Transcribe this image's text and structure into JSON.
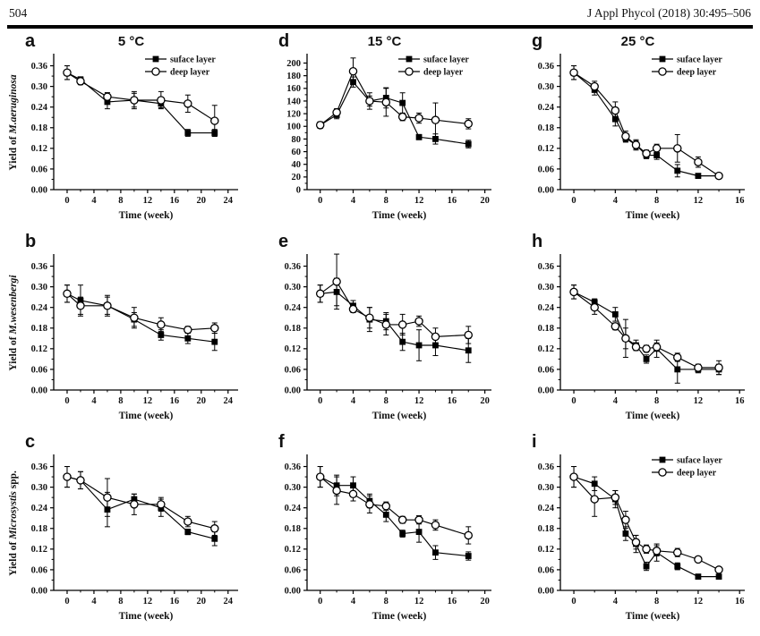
{
  "page": {
    "page_number": "504",
    "journal_ref": "J Appl Phycol (2018) 30:495–506"
  },
  "chart_data": [
    {
      "id": "a",
      "panel_label": "a",
      "title": "5 °C",
      "type": "line",
      "show_legend": true,
      "ylabel_prefix": "Yield of ",
      "ylabel_species": "M.aeruginosa",
      "ylabel_suffix": "",
      "xlabel": "Time (week)",
      "xlim": [
        -2,
        25.5
      ],
      "xticks": [
        0,
        4,
        8,
        12,
        16,
        20,
        24
      ],
      "ylim": [
        0,
        0.39
      ],
      "yticks": [
        0,
        0.06,
        0.12,
        0.18,
        0.24,
        0.3,
        0.36
      ],
      "ytick_labels": [
        "0.00",
        "0.06",
        "0.12",
        "0.18",
        "0.24",
        "0.30",
        "0.36"
      ],
      "x": [
        0,
        2,
        6,
        10,
        14,
        18,
        22
      ],
      "series": [
        {
          "name": "suface layer",
          "marker": "filled-square",
          "values": [
            0.34,
            0.32,
            0.255,
            0.26,
            0.25,
            0.165,
            0.165
          ],
          "errors": [
            0.02,
            0.008,
            0.02,
            0.025,
            0.012,
            0.01,
            0.01
          ]
        },
        {
          "name": "deep layer",
          "marker": "open-circle",
          "values": [
            0.34,
            0.315,
            0.27,
            0.26,
            0.26,
            0.25,
            0.2
          ],
          "errors": [
            0.02,
            0.01,
            0.012,
            0.02,
            0.025,
            0.025,
            0.045
          ]
        }
      ]
    },
    {
      "id": "d",
      "panel_label": "d",
      "title": "15 °C",
      "type": "line",
      "show_legend": true,
      "ylabel_prefix": "",
      "ylabel_species": "",
      "ylabel_suffix": "",
      "xlabel": "Time (week)",
      "xlim": [
        -1.6,
        20.8
      ],
      "xticks": [
        0,
        4,
        8,
        12,
        16,
        20
      ],
      "ylim": [
        0,
        212
      ],
      "yticks": [
        0,
        20,
        40,
        60,
        80,
        100,
        120,
        140,
        160,
        180,
        200
      ],
      "ytick_labels": [
        "0",
        "20",
        "40",
        "60",
        "80",
        "100",
        "120",
        "140",
        "160",
        "180",
        "200"
      ],
      "x": [
        0,
        2,
        4,
        6,
        8,
        10,
        12,
        14,
        18
      ],
      "series": [
        {
          "name": "suface layer",
          "marker": "filled-square",
          "values": [
            102,
            118,
            170,
            140,
            145,
            137,
            83,
            80,
            72
          ],
          "errors": [
            5,
            6,
            8,
            8,
            16,
            16,
            4,
            8,
            6
          ]
        },
        {
          "name": "deep layer",
          "marker": "open-circle",
          "values": [
            102,
            122,
            187,
            140,
            138,
            115,
            113,
            110,
            104
          ],
          "errors": [
            5,
            6,
            21,
            13,
            22,
            6,
            8,
            27,
            8
          ]
        }
      ]
    },
    {
      "id": "g",
      "panel_label": "g",
      "title": "25 °C",
      "type": "line",
      "show_legend": true,
      "ylabel_prefix": "",
      "ylabel_species": "",
      "ylabel_suffix": "",
      "xlabel": "Time (week)",
      "xlim": [
        -1.3,
        16.5
      ],
      "xticks": [
        0,
        4,
        8,
        12,
        16
      ],
      "ylim": [
        0,
        0.39
      ],
      "yticks": [
        0,
        0.06,
        0.12,
        0.18,
        0.24,
        0.3,
        0.36
      ],
      "ytick_labels": [
        "0.00",
        "0.06",
        "0.12",
        "0.18",
        "0.24",
        "0.30",
        "0.36"
      ],
      "x": [
        0,
        2,
        4,
        5,
        6,
        7,
        8,
        10,
        12,
        14
      ],
      "series": [
        {
          "name": "suface layer",
          "marker": "filled-square",
          "values": [
            0.34,
            0.29,
            0.205,
            0.15,
            0.13,
            0.1,
            0.1,
            0.055,
            0.04,
            0.04
          ],
          "errors": [
            0.02,
            0.015,
            0.02,
            0.012,
            0.012,
            0.01,
            0.012,
            0.018,
            0.005,
            0.005
          ]
        },
        {
          "name": "deep layer",
          "marker": "open-circle",
          "values": [
            0.34,
            0.3,
            0.23,
            0.155,
            0.13,
            0.105,
            0.12,
            0.12,
            0.08,
            0.04
          ],
          "errors": [
            0.02,
            0.015,
            0.025,
            0.015,
            0.015,
            0.01,
            0.012,
            0.04,
            0.015,
            0.005
          ]
        }
      ]
    },
    {
      "id": "b",
      "panel_label": "b",
      "title": "",
      "type": "line",
      "show_legend": false,
      "ylabel_prefix": "Yield of ",
      "ylabel_species": "M.wesenbergi",
      "ylabel_suffix": "",
      "xlabel": "Time (week)",
      "xlim": [
        -2,
        25.5
      ],
      "xticks": [
        0,
        4,
        8,
        12,
        16,
        20,
        24
      ],
      "ylim": [
        0,
        0.39
      ],
      "yticks": [
        0,
        0.06,
        0.12,
        0.18,
        0.24,
        0.3,
        0.36
      ],
      "ytick_labels": [
        "0.00",
        "0.06",
        "0.12",
        "0.18",
        "0.24",
        "0.30",
        "0.36"
      ],
      "x": [
        0,
        2,
        6,
        10,
        14,
        18,
        22
      ],
      "series": [
        {
          "name": "suface layer",
          "marker": "filled-square",
          "values": [
            0.28,
            0.26,
            0.245,
            0.205,
            0.16,
            0.15,
            0.14
          ],
          "errors": [
            0.025,
            0.045,
            0.025,
            0.02,
            0.015,
            0.015,
            0.025
          ]
        },
        {
          "name": "deep layer",
          "marker": "open-circle",
          "values": [
            0.28,
            0.245,
            0.245,
            0.21,
            0.19,
            0.175,
            0.18
          ],
          "errors": [
            0.025,
            0.025,
            0.03,
            0.03,
            0.02,
            0.01,
            0.015
          ]
        }
      ]
    },
    {
      "id": "e",
      "panel_label": "e",
      "title": "",
      "type": "line",
      "show_legend": false,
      "ylabel_prefix": "",
      "ylabel_species": "",
      "ylabel_suffix": "",
      "xlabel": "Time (week)",
      "xlim": [
        -1.6,
        20.8
      ],
      "xticks": [
        0,
        4,
        8,
        12,
        16,
        20
      ],
      "ylim": [
        0,
        0.39
      ],
      "yticks": [
        0,
        0.06,
        0.12,
        0.18,
        0.24,
        0.3,
        0.36
      ],
      "ytick_labels": [
        "0.00",
        "0.06",
        "0.12",
        "0.18",
        "0.24",
        "0.30",
        "0.36"
      ],
      "x": [
        0,
        2,
        4,
        6,
        8,
        10,
        12,
        14,
        18
      ],
      "series": [
        {
          "name": "suface layer",
          "marker": "filled-square",
          "values": [
            0.28,
            0.285,
            0.245,
            0.205,
            0.2,
            0.14,
            0.13,
            0.13,
            0.115
          ],
          "errors": [
            0.025,
            0.04,
            0.015,
            0.035,
            0.025,
            0.025,
            0.045,
            0.03,
            0.035
          ]
        },
        {
          "name": "deep layer",
          "marker": "open-circle",
          "values": [
            0.28,
            0.315,
            0.235,
            0.21,
            0.19,
            0.19,
            0.2,
            0.155,
            0.16
          ],
          "errors": [
            0.025,
            0.08,
            0.01,
            0.03,
            0.03,
            0.03,
            0.015,
            0.025,
            0.025
          ]
        }
      ]
    },
    {
      "id": "h",
      "panel_label": "h",
      "title": "",
      "type": "line",
      "show_legend": false,
      "ylabel_prefix": "",
      "ylabel_species": "",
      "ylabel_suffix": "",
      "xlabel": "Time (week)",
      "xlim": [
        -1.3,
        16.5
      ],
      "xticks": [
        0,
        4,
        8,
        12,
        16
      ],
      "ylim": [
        0,
        0.39
      ],
      "yticks": [
        0,
        0.06,
        0.12,
        0.18,
        0.24,
        0.3,
        0.36
      ],
      "ytick_labels": [
        "0.00",
        "0.06",
        "0.12",
        "0.18",
        "0.24",
        "0.30",
        "0.36"
      ],
      "x": [
        0,
        2,
        4,
        5,
        6,
        7,
        8,
        10,
        12,
        14
      ],
      "series": [
        {
          "name": "suface layer",
          "marker": "filled-square",
          "values": [
            0.285,
            0.255,
            0.22,
            0.15,
            0.13,
            0.09,
            0.12,
            0.06,
            0.06,
            0.06
          ],
          "errors": [
            0.02,
            0.01,
            0.02,
            0.03,
            0.015,
            0.012,
            0.025,
            0.04,
            0.01,
            0.015
          ]
        },
        {
          "name": "deep layer",
          "marker": "open-circle",
          "values": [
            0.285,
            0.24,
            0.185,
            0.15,
            0.125,
            0.12,
            0.125,
            0.095,
            0.065,
            0.065
          ],
          "errors": [
            0.02,
            0.02,
            0.01,
            0.055,
            0.01,
            0.01,
            0.012,
            0.012,
            0.01,
            0.02
          ]
        }
      ]
    },
    {
      "id": "c",
      "panel_label": "c",
      "title": "",
      "type": "line",
      "show_legend": false,
      "ylabel_prefix": "Yield of ",
      "ylabel_species": "Microsystis",
      "ylabel_suffix": " spp.",
      "xlabel": "Time (week)",
      "xlim": [
        -2,
        25.5
      ],
      "xticks": [
        0,
        4,
        8,
        12,
        16,
        20,
        24
      ],
      "ylim": [
        0,
        0.39
      ],
      "yticks": [
        0,
        0.06,
        0.12,
        0.18,
        0.24,
        0.3,
        0.36
      ],
      "ytick_labels": [
        "0.00",
        "0.06",
        "0.12",
        "0.18",
        "0.24",
        "0.30",
        "0.36"
      ],
      "x": [
        0,
        2,
        6,
        10,
        14,
        18,
        22
      ],
      "series": [
        {
          "name": "suface layer",
          "marker": "filled-square",
          "values": [
            0.33,
            0.32,
            0.235,
            0.265,
            0.24,
            0.17,
            0.15
          ],
          "errors": [
            0.03,
            0.025,
            0.05,
            0.015,
            0.025,
            0.008,
            0.02
          ]
        },
        {
          "name": "deep layer",
          "marker": "open-circle",
          "values": [
            0.33,
            0.32,
            0.27,
            0.25,
            0.25,
            0.2,
            0.18
          ],
          "errors": [
            0.03,
            0.025,
            0.055,
            0.03,
            0.02,
            0.015,
            0.02
          ]
        }
      ]
    },
    {
      "id": "f",
      "panel_label": "f",
      "title": "",
      "type": "line",
      "show_legend": false,
      "ylabel_prefix": "",
      "ylabel_species": "",
      "ylabel_suffix": "",
      "xlabel": "Time (week)",
      "xlim": [
        -1.6,
        20.8
      ],
      "xticks": [
        0,
        4,
        8,
        12,
        16,
        20
      ],
      "ylim": [
        0,
        0.39
      ],
      "yticks": [
        0,
        0.06,
        0.12,
        0.18,
        0.24,
        0.3,
        0.36
      ],
      "ytick_labels": [
        "0.00",
        "0.06",
        "0.12",
        "0.18",
        "0.24",
        "0.30",
        "0.36"
      ],
      "x": [
        0,
        2,
        4,
        6,
        8,
        10,
        12,
        14,
        18
      ],
      "series": [
        {
          "name": "suface layer",
          "marker": "filled-square",
          "values": [
            0.33,
            0.305,
            0.305,
            0.26,
            0.22,
            0.165,
            0.17,
            0.11,
            0.1
          ],
          "errors": [
            0.03,
            0.03,
            0.025,
            0.02,
            0.02,
            0.01,
            0.03,
            0.02,
            0.012
          ]
        },
        {
          "name": "deep layer",
          "marker": "open-circle",
          "values": [
            0.33,
            0.29,
            0.28,
            0.25,
            0.245,
            0.205,
            0.205,
            0.19,
            0.16
          ],
          "errors": [
            0.03,
            0.04,
            0.02,
            0.025,
            0.012,
            0.01,
            0.012,
            0.015,
            0.025
          ]
        }
      ]
    },
    {
      "id": "i",
      "panel_label": "i",
      "title": "",
      "type": "line",
      "show_legend": true,
      "ylabel_prefix": "",
      "ylabel_species": "",
      "ylabel_suffix": "",
      "xlabel": "Time (week)",
      "xlim": [
        -1.3,
        16.5
      ],
      "xticks": [
        0,
        4,
        8,
        12,
        16
      ],
      "ylim": [
        0,
        0.39
      ],
      "yticks": [
        0,
        0.06,
        0.12,
        0.18,
        0.24,
        0.3,
        0.36
      ],
      "ytick_labels": [
        "0.00",
        "0.06",
        "0.12",
        "0.18",
        "0.24",
        "0.30",
        "0.36"
      ],
      "x": [
        0,
        2,
        4,
        5,
        6,
        7,
        8,
        10,
        12,
        14
      ],
      "series": [
        {
          "name": "suface layer",
          "marker": "filled-square",
          "values": [
            0.33,
            0.31,
            0.265,
            0.165,
            0.135,
            0.07,
            0.11,
            0.07,
            0.04,
            0.04
          ],
          "errors": [
            0.03,
            0.02,
            0.025,
            0.02,
            0.025,
            0.012,
            0.025,
            0.01,
            0.005,
            0.005
          ]
        },
        {
          "name": "deep layer",
          "marker": "open-circle",
          "values": [
            0.33,
            0.265,
            0.27,
            0.205,
            0.14,
            0.12,
            0.115,
            0.11,
            0.09,
            0.06
          ],
          "errors": [
            0.03,
            0.05,
            0.02,
            0.025,
            0.02,
            0.012,
            0.015,
            0.012,
            0.008,
            0.008
          ]
        }
      ]
    }
  ]
}
